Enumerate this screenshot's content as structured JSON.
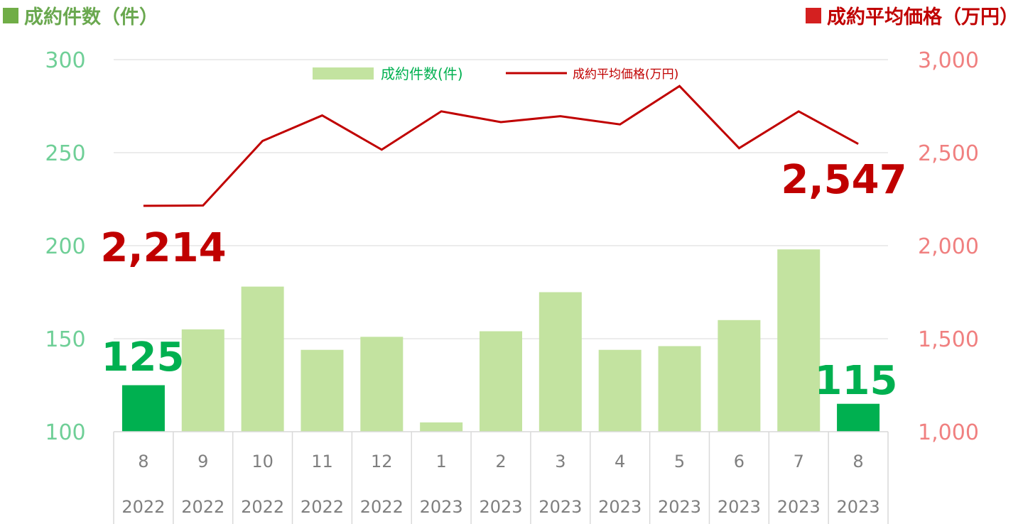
{
  "header": {
    "left_title": "成約件数（件）",
    "right_title": "成約平均価格（万円）"
  },
  "colors": {
    "bar": "#c3e3a0",
    "bar_highlight": "#00b050",
    "line": "#c00000",
    "left_axis_text": "#6fcf97",
    "right_axis_text": "#f08080",
    "callout_green": "#00b050",
    "callout_red": "#c00000"
  },
  "chart_data": {
    "type": "bar+line",
    "categories": [
      "8",
      "9",
      "10",
      "11",
      "12",
      "1",
      "2",
      "3",
      "4",
      "5",
      "6",
      "7",
      "8"
    ],
    "years": [
      "2022",
      "2022",
      "2022",
      "2022",
      "2022",
      "2023",
      "2023",
      "2023",
      "2023",
      "2023",
      "2023",
      "2023",
      "2023"
    ],
    "series": [
      {
        "name": "成約件数(件)",
        "type": "bar",
        "axis": "left",
        "values": [
          125,
          155,
          178,
          144,
          151,
          105,
          154,
          175,
          144,
          146,
          160,
          198,
          115
        ],
        "highlight": [
          0,
          12
        ]
      },
      {
        "name": "成約平均価格(万円)",
        "type": "line",
        "axis": "right",
        "values": [
          2214,
          2216,
          2563,
          2700,
          2516,
          2722,
          2664,
          2696,
          2652,
          2858,
          2524,
          2722,
          2547
        ]
      }
    ],
    "left_axis": {
      "min": 100,
      "max": 300,
      "ticks": [
        "100",
        "150",
        "200",
        "250",
        "300"
      ]
    },
    "right_axis": {
      "min": 1000,
      "max": 3000,
      "ticks": [
        "1,000",
        "1,500",
        "2,000",
        "2,500",
        "3,000"
      ]
    },
    "legend": {
      "position": "top-center"
    },
    "callouts": [
      {
        "text": "125",
        "series": "bar",
        "index": 0
      },
      {
        "text": "115",
        "series": "bar",
        "index": 12
      },
      {
        "text": "2,214",
        "series": "line",
        "index": 0
      },
      {
        "text": "2,547",
        "series": "line",
        "index": 12
      }
    ],
    "grid": true
  }
}
